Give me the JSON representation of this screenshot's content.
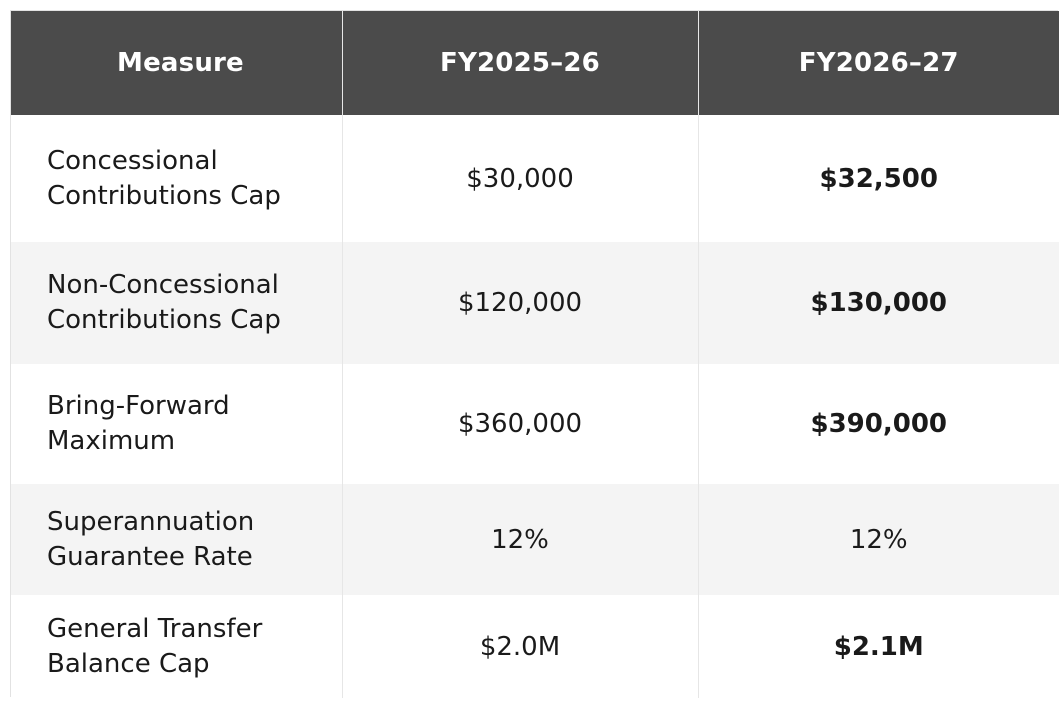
{
  "table": {
    "headers": {
      "measure": "Measure",
      "fy1": "FY2025–26",
      "fy2": "FY2026–27"
    },
    "rows": [
      {
        "measure_line1": "Concessional",
        "measure_line2": "Contributions Cap",
        "fy1": "$30,000",
        "fy2": "$32,500"
      },
      {
        "measure_line1": "Non-Concessional",
        "measure_line2": "Contributions Cap",
        "fy1": "$120,000",
        "fy2": "$130,000"
      },
      {
        "measure_line1": "Bring-Forward",
        "measure_line2": "Maximum",
        "fy1": "$360,000",
        "fy2": "$390,000"
      },
      {
        "measure_line1": "Superannuation",
        "measure_line2": "Guarantee Rate",
        "fy1": "12%",
        "fy2": "12%"
      },
      {
        "measure_line1": "General Transfer",
        "measure_line2": "Balance Cap",
        "fy1": "$2.0M",
        "fy2": "$2.1M"
      }
    ]
  },
  "colors": {
    "header_bg": "#4b4b4b",
    "header_text": "#ffffff",
    "shaded_row": "#f4f4f4",
    "text": "#1a1a1a"
  }
}
